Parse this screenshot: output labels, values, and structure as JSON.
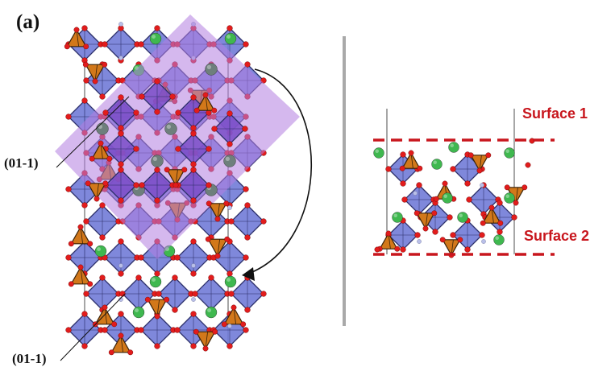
{
  "figure": {
    "panel_label": "(a)",
    "plane_label_top": "(01-1)",
    "plane_label_bottom": "(01-1)",
    "surface_1_label": "Surface 1",
    "surface_2_label": "Surface 2"
  },
  "colors": {
    "octahedron": "#6d78d6",
    "octahedron_edge": "#2c2f6a",
    "tetrahedron": "#d2781a",
    "oxygen": "#e21c1c",
    "green_atom": "#3fb84f",
    "gray_atom": "#6e7f7c",
    "small_atom": "#b9bfe8",
    "cleave_plane": "#b27de0",
    "surface_marker": "#c8161d",
    "divider": "#a9a9a9"
  },
  "icons": [
    "curved-arrow-icon"
  ]
}
